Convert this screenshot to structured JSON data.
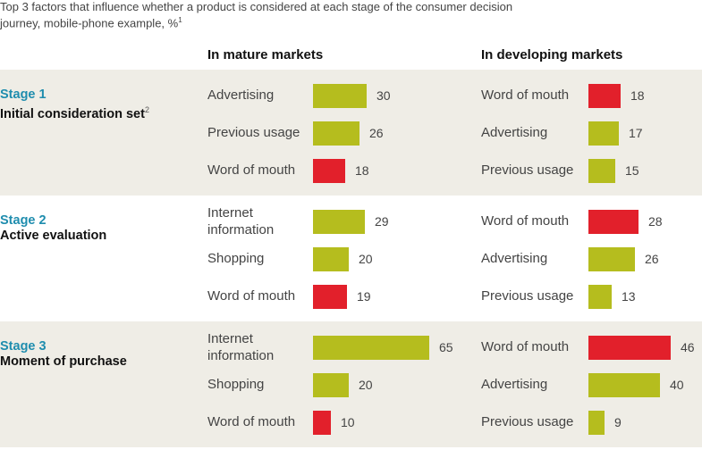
{
  "colors": {
    "neutral": "#b5bd1e",
    "word_of_mouth": "#e2202b",
    "stage_number": "#1f8dae",
    "band": "#efede6"
  },
  "chart_data": {
    "type": "bar",
    "orientation": "horizontal",
    "title": "Top 3 factors that influence whether a product is considered at each stage of the consumer decision journey, mobile-phone example, %",
    "title_footnote": "1",
    "markets": [
      {
        "key": "mature",
        "label": "In mature markets"
      },
      {
        "key": "developing",
        "label": "In developing markets"
      }
    ],
    "stages": [
      {
        "number": "Stage 1",
        "name": "Initial consideration set",
        "footnote": "2",
        "mature": [
          {
            "factor": "Advertising",
            "value": 30
          },
          {
            "factor": "Previous usage",
            "value": 26
          },
          {
            "factor": "Word of mouth",
            "value": 18
          }
        ],
        "developing": [
          {
            "factor": "Word of mouth",
            "value": 18
          },
          {
            "factor": "Advertising",
            "value": 17
          },
          {
            "factor": "Previous usage",
            "value": 15
          }
        ]
      },
      {
        "number": "Stage 2",
        "name": "Active evaluation",
        "footnote": "",
        "mature": [
          {
            "factor": "Internet information",
            "value": 29
          },
          {
            "factor": "Shopping",
            "value": 20
          },
          {
            "factor": "Word of mouth",
            "value": 19
          }
        ],
        "developing": [
          {
            "factor": "Word of mouth",
            "value": 28
          },
          {
            "factor": "Advertising",
            "value": 26
          },
          {
            "factor": "Previous usage",
            "value": 13
          }
        ]
      },
      {
        "number": "Stage 3",
        "name": "Moment of purchase",
        "footnote": "",
        "mature": [
          {
            "factor": "Internet information",
            "value": 65
          },
          {
            "factor": "Shopping",
            "value": 20
          },
          {
            "factor": "Word of mouth",
            "value": 10
          }
        ],
        "developing": [
          {
            "factor": "Word of mouth",
            "value": 46
          },
          {
            "factor": "Advertising",
            "value": 40
          },
          {
            "factor": "Previous usage",
            "value": 9
          }
        ]
      }
    ]
  }
}
